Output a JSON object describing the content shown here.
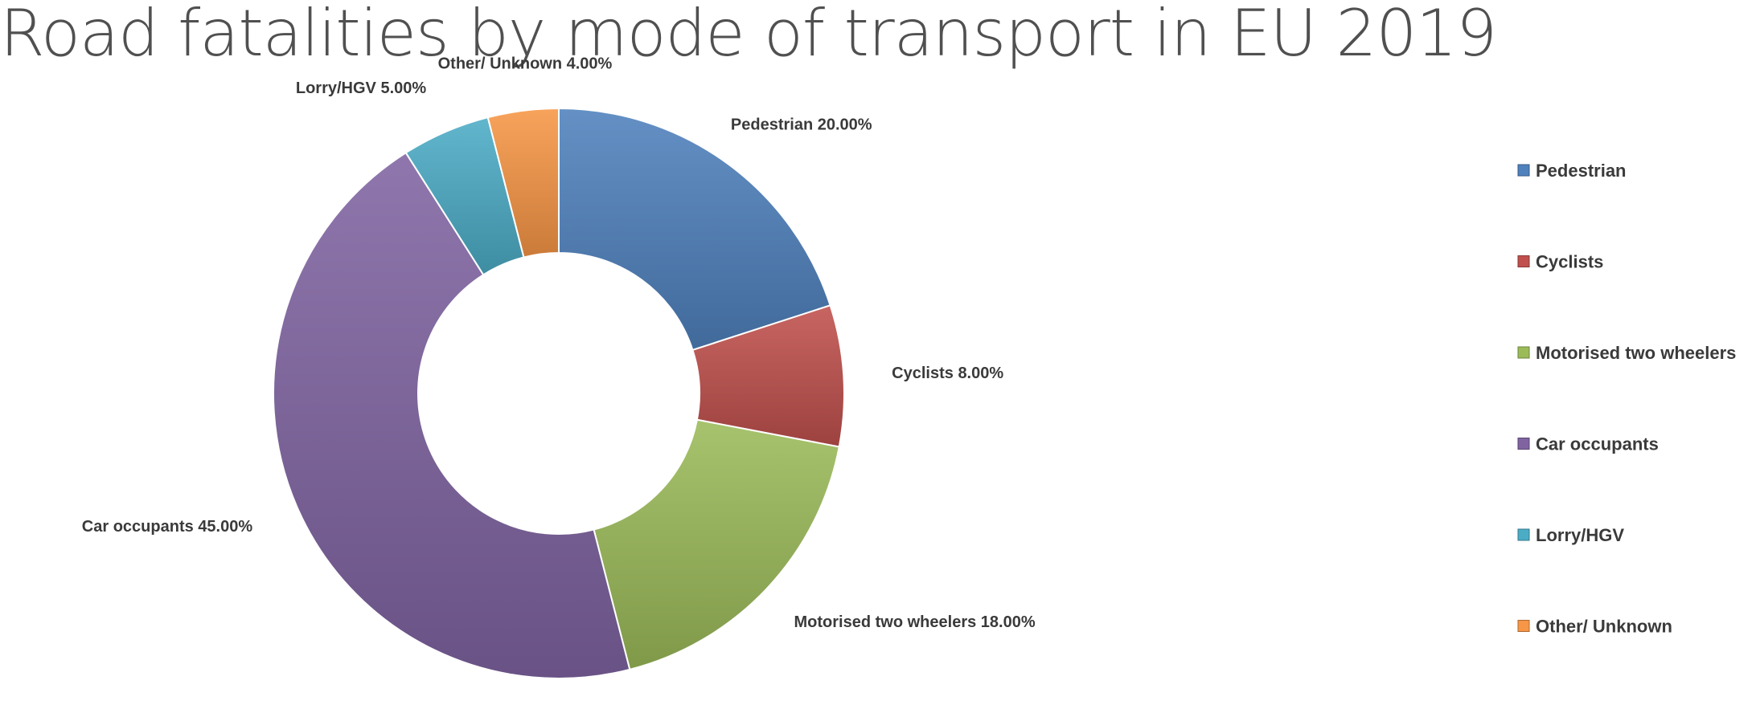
{
  "chart_data": {
    "type": "pie",
    "donut": true,
    "title": "Road fatalities by mode of transport in EU 2019",
    "slices": [
      {
        "label": "Pedestrian",
        "value": 20.0,
        "display": "20.00%",
        "color": "#4f81bd"
      },
      {
        "label": "Cyclists",
        "value": 8.0,
        "display": "8.00%",
        "color": "#c0504d"
      },
      {
        "label": "Motorised two wheelers",
        "value": 18.0,
        "display": "18.00%",
        "color": "#9bbb59"
      },
      {
        "label": "Car occupants",
        "value": 45.0,
        "display": "45.00%",
        "color": "#8064a2"
      },
      {
        "label": "Lorry/HGV",
        "value": 5.0,
        "display": "5.00%",
        "color": "#4bacc6"
      },
      {
        "label": "Other/ Unknown",
        "value": 4.0,
        "display": "4.00%",
        "color": "#f79646"
      }
    ],
    "legend_position": "right",
    "data_labels": "outside"
  }
}
